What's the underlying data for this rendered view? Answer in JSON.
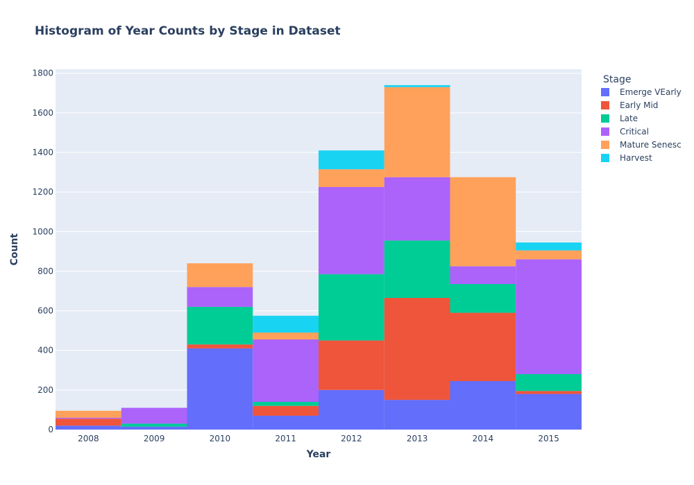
{
  "chart_data": {
    "type": "bar",
    "stacked": true,
    "title": "Histogram of Year Counts by Stage in Dataset",
    "xlabel": "Year",
    "ylabel": "Count",
    "ylim": [
      0,
      1820
    ],
    "yticks": [
      0,
      200,
      400,
      600,
      800,
      1000,
      1200,
      1400,
      1600,
      1800
    ],
    "grid": true,
    "legend_title": "Stage",
    "legend_position": "right",
    "categories": [
      "2008",
      "2009",
      "2010",
      "2011",
      "2012",
      "2013",
      "2014",
      "2015"
    ],
    "series": [
      {
        "name": "Emerge VEarly",
        "color": "#636efa",
        "values": [
          20,
          15,
          410,
          70,
          200,
          150,
          245,
          180
        ]
      },
      {
        "name": "Early Mid",
        "color": "#ef553b",
        "values": [
          35,
          0,
          20,
          50,
          250,
          515,
          345,
          15
        ]
      },
      {
        "name": "Late",
        "color": "#00cc96",
        "values": [
          0,
          15,
          190,
          20,
          335,
          290,
          145,
          85
        ]
      },
      {
        "name": "Critical",
        "color": "#ab63fa",
        "values": [
          5,
          80,
          100,
          315,
          440,
          320,
          90,
          580
        ]
      },
      {
        "name": "Mature Senesc",
        "color": "#ffa15a",
        "values": [
          35,
          0,
          120,
          35,
          90,
          455,
          450,
          45
        ]
      },
      {
        "name": "Harvest",
        "color": "#19d3f3",
        "values": [
          0,
          0,
          0,
          85,
          95,
          10,
          0,
          40
        ]
      }
    ]
  }
}
